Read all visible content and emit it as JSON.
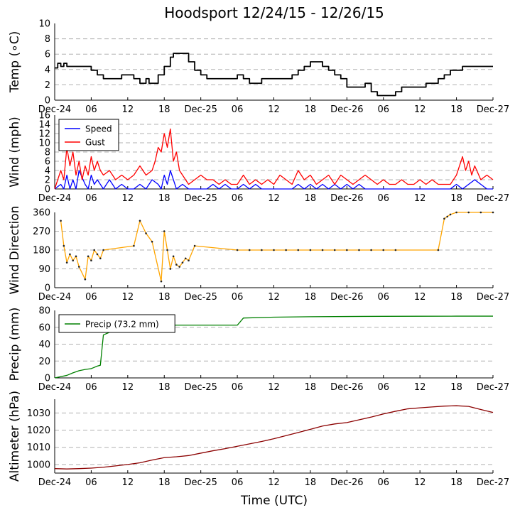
{
  "chart_data": {
    "type": "line",
    "title": "Hoodsport 12/24/15 - 12/26/15",
    "xlabel": "Time (UTC)",
    "x_tick_labels": [
      "Dec-24",
      "06",
      "12",
      "18",
      "Dec-25",
      "06",
      "12",
      "18",
      "Dec-26",
      "06",
      "12",
      "18",
      "Dec-27"
    ],
    "x_range_hours": [
      0,
      72
    ],
    "panels": [
      {
        "ylabel": "Temp (∘C)",
        "ylim": [
          0,
          10
        ],
        "yticks": [
          0,
          2,
          4,
          6,
          8,
          10
        ],
        "series": [
          {
            "name": "Temp",
            "color": "#000000",
            "style": "step",
            "x": [
              0,
              0.5,
              1,
              1.5,
              2,
              3,
              5,
              6,
              7,
              8,
              9,
              11,
              13,
              14,
              15,
              15.5,
              17,
              18,
              19,
              19.5,
              20,
              21,
              22,
              23,
              24,
              25,
              26,
              27,
              28,
              30,
              31,
              32,
              33,
              34,
              36,
              37,
              38,
              39,
              40,
              41,
              42,
              43,
              44,
              45,
              46,
              47,
              48,
              49,
              50,
              51,
              52,
              53,
              54,
              55,
              56,
              57,
              60,
              61,
              63,
              64,
              65,
              66,
              67,
              68,
              69,
              70,
              71,
              72
            ],
            "y": [
              4.2,
              4.8,
              4.4,
              4.8,
              4.4,
              4.4,
              4.4,
              3.9,
              3.3,
              2.8,
              2.8,
              3.3,
              2.8,
              2.2,
              2.8,
              2.2,
              3.3,
              4.4,
              5.6,
              6.1,
              6.1,
              6.1,
              5.0,
              3.9,
              3.3,
              2.8,
              2.8,
              2.8,
              2.8,
              3.3,
              2.8,
              2.2,
              2.2,
              2.8,
              2.8,
              2.8,
              2.8,
              3.3,
              3.9,
              4.4,
              5.0,
              5.0,
              4.4,
              3.9,
              3.3,
              2.8,
              1.7,
              1.7,
              1.7,
              2.2,
              1.1,
              0.6,
              0.6,
              0.6,
              1.1,
              1.7,
              1.7,
              2.2,
              2.8,
              3.3,
              3.9,
              3.9,
              4.4,
              4.4,
              4.4,
              4.4,
              4.4,
              4.4
            ]
          }
        ]
      },
      {
        "ylabel": "Wind (mph)",
        "ylim": [
          0,
          16
        ],
        "yticks": [
          0,
          2,
          4,
          6,
          8,
          10,
          12,
          14,
          16
        ],
        "legend": "top-left",
        "series": [
          {
            "name": "Speed",
            "color": "#0000ff",
            "style": "line",
            "x": [
              0,
              1,
              1.5,
              2,
              2.5,
              3,
              3.5,
              4,
              5,
              5.5,
              6,
              6.5,
              7,
              8,
              9,
              10,
              11,
              12,
              13,
              14,
              15,
              16,
              17,
              17.5,
              18,
              18.5,
              19,
              19.5,
              20,
              21,
              22,
              23,
              24,
              25,
              26,
              27,
              28,
              29,
              30,
              31,
              32,
              33,
              34,
              35,
              36,
              37,
              38,
              39,
              40,
              41,
              42,
              43,
              44,
              45,
              46,
              47,
              48,
              49,
              50,
              51,
              52,
              53,
              54,
              55,
              56,
              57,
              58,
              59,
              60,
              61,
              62,
              63,
              64,
              65,
              66,
              67,
              68,
              69,
              70,
              71,
              72
            ],
            "y": [
              0,
              1,
              0,
              3,
              0,
              2,
              0,
              4,
              1,
              0,
              3,
              1,
              2,
              0,
              2,
              0,
              1,
              0,
              0,
              1,
              0,
              2,
              1,
              0,
              3,
              1,
              4,
              2,
              0,
              1,
              0,
              0,
              0,
              0,
              1,
              0,
              1,
              0,
              0,
              1,
              0,
              1,
              0,
              0,
              0,
              0,
              0,
              0,
              1,
              0,
              1,
              0,
              1,
              0,
              1,
              0,
              1,
              0,
              1,
              0,
              0,
              0,
              0,
              0,
              0,
              0,
              0,
              0,
              0,
              0,
              0,
              0,
              0,
              0,
              1,
              0,
              1,
              2,
              1,
              0,
              0
            ]
          },
          {
            "name": "Gust",
            "color": "#ff0000",
            "style": "line",
            "x": [
              0,
              0.5,
              1,
              1.5,
              2,
              2.5,
              3,
              3.5,
              4,
              4.5,
              5,
              5.5,
              6,
              6.5,
              7,
              7.5,
              8,
              9,
              10,
              11,
              12,
              13,
              14,
              15,
              16,
              16.5,
              17,
              17.5,
              18,
              18.5,
              19,
              19.5,
              20,
              20.5,
              21,
              21.5,
              22,
              23,
              24,
              25,
              26,
              27,
              28,
              29,
              30,
              31,
              32,
              33,
              34,
              35,
              36,
              37,
              38,
              39,
              40,
              41,
              42,
              43,
              44,
              45,
              46,
              47,
              48,
              49,
              50,
              51,
              52,
              53,
              54,
              55,
              56,
              57,
              58,
              59,
              60,
              61,
              62,
              63,
              64,
              65,
              66,
              66.5,
              67,
              67.5,
              68,
              68.5,
              69,
              70,
              71,
              72
            ],
            "y": [
              0,
              2,
              4,
              2,
              9,
              5,
              8,
              3,
              6,
              2,
              5,
              3,
              7,
              4,
              6,
              4,
              3,
              4,
              2,
              3,
              2,
              3,
              5,
              3,
              4,
              6,
              9,
              8,
              12,
              9,
              13,
              6,
              8,
              4,
              3,
              2,
              1,
              2,
              3,
              2,
              2,
              1,
              2,
              1,
              1,
              3,
              1,
              2,
              1,
              2,
              1,
              3,
              2,
              1,
              4,
              2,
              3,
              1,
              2,
              3,
              1,
              3,
              2,
              1,
              2,
              3,
              2,
              1,
              2,
              1,
              1,
              2,
              1,
              1,
              2,
              1,
              2,
              1,
              1,
              1,
              3,
              5,
              7,
              4,
              6,
              3,
              5,
              2,
              3,
              2
            ]
          }
        ]
      },
      {
        "ylabel": "Wind Direction",
        "ylim": [
          0,
          360
        ],
        "yticks": [
          0,
          90,
          180,
          270,
          360
        ],
        "series": [
          {
            "name": "Direction",
            "color": "#ffa500",
            "style": "line",
            "x": [
              1,
              1.5,
              2,
              2.5,
              3,
              3.5,
              4,
              5,
              5.5,
              6,
              6.5,
              7,
              7.5,
              8,
              13,
              14,
              15,
              16,
              17.5,
              18,
              18.5,
              19,
              19.5,
              20,
              20.5,
              21,
              21.5,
              22,
              23,
              30,
              32,
              34,
              36,
              38,
              40,
              42,
              44,
              46,
              48,
              50,
              52,
              54,
              56,
              63,
              64,
              64.5,
              65,
              66,
              68,
              70,
              72
            ],
            "y": [
              320,
              200,
              120,
              160,
              130,
              150,
              100,
              40,
              150,
              130,
              180,
              160,
              140,
              180,
              200,
              320,
              260,
              220,
              30,
              270,
              180,
              90,
              150,
              110,
              100,
              120,
              140,
              130,
              200,
              180,
              180,
              180,
              180,
              180,
              180,
              180,
              180,
              180,
              180,
              180,
              180,
              180,
              180,
              180,
              330,
              340,
              350,
              360,
              360,
              360,
              360
            ]
          }
        ]
      },
      {
        "ylabel": "Precip (mm)",
        "ylim": [
          0,
          80
        ],
        "yticks": [
          0,
          20,
          40,
          60,
          80
        ],
        "legend": "top-left",
        "series": [
          {
            "name": "Precip (73.2 mm)",
            "color": "#008000",
            "style": "line",
            "x": [
              0,
              1,
              2,
              3,
              4,
              5,
              6,
              7,
              7.5,
              8,
              9,
              10,
              11,
              12,
              14,
              18,
              24,
              30,
              31,
              36,
              42,
              48,
              54,
              60,
              66,
              72
            ],
            "y": [
              0,
              1.5,
              3,
              6,
              8.5,
              10,
              11,
              14,
              15,
              51,
              54,
              57,
              60,
              61,
              62,
              62.5,
              62.5,
              62.5,
              71,
              72,
              72.5,
              72.8,
              73,
              73.1,
              73.2,
              73.2
            ]
          }
        ]
      },
      {
        "ylabel": "Altimeter (hPa)",
        "ylim": [
          995,
          1038
        ],
        "yticks": [
          1000,
          1010,
          1020,
          1030
        ],
        "series": [
          {
            "name": "Altimeter",
            "color": "#8b0000",
            "style": "line",
            "x": [
              0,
              2,
              4,
              6,
              8,
              10,
              12,
              14,
              16,
              18,
              20,
              22,
              24,
              26,
              28,
              30,
              32,
              34,
              36,
              38,
              40,
              42,
              44,
              46,
              48,
              50,
              52,
              54,
              56,
              58,
              60,
              62,
              64,
              66,
              68,
              70,
              72
            ],
            "y": [
              997.6,
              997.4,
              997.6,
              997.9,
              998.4,
              999.2,
              1000.0,
              1001.0,
              1002.6,
              1004.0,
              1004.5,
              1005.2,
              1006.6,
              1008.0,
              1009.2,
              1010.6,
              1012.0,
              1013.4,
              1015.0,
              1016.8,
              1018.6,
              1020.5,
              1022.4,
              1023.6,
              1024.4,
              1026.0,
              1027.6,
              1029.4,
              1031.0,
              1032.4,
              1033.0,
              1033.5,
              1034.0,
              1034.2,
              1033.8,
              1032.0,
              1030.3
            ]
          }
        ]
      }
    ]
  }
}
